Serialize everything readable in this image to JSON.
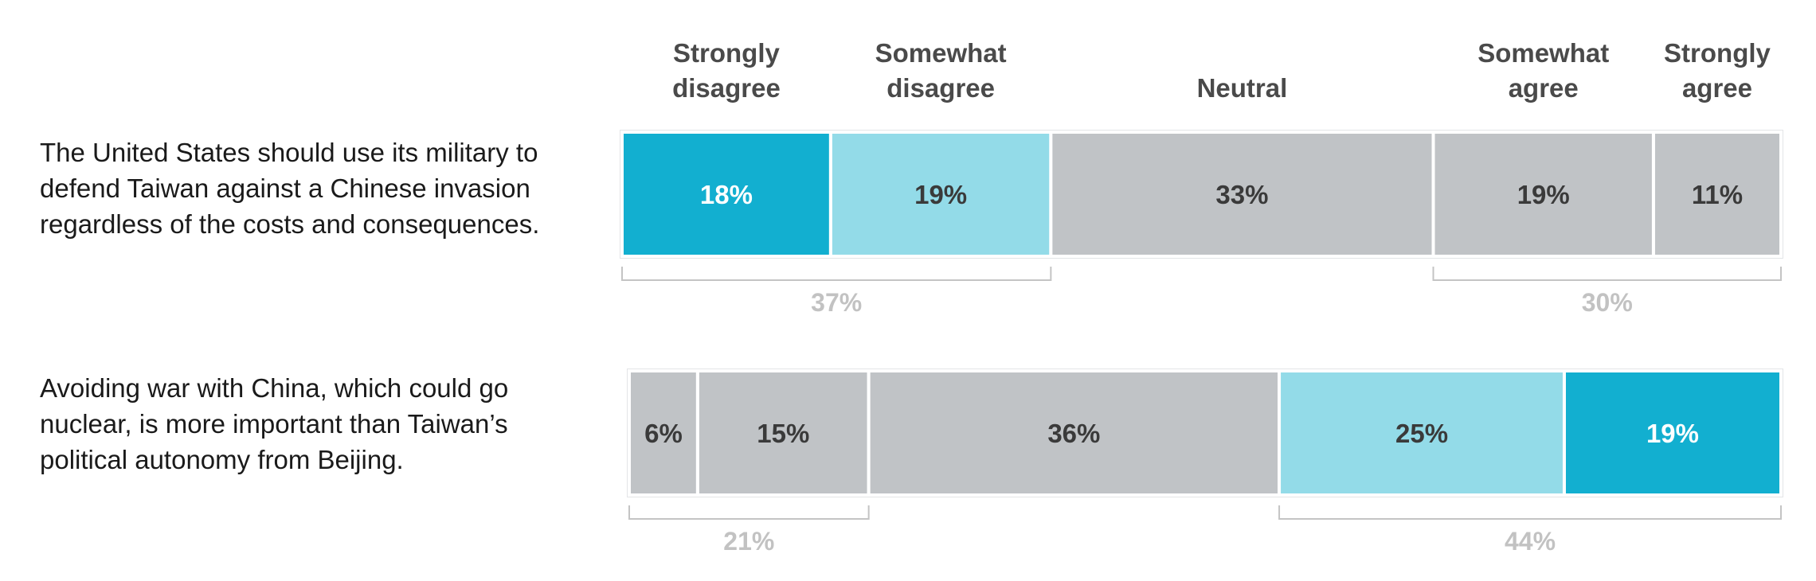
{
  "chart_data": {
    "type": "bar",
    "orientation": "horizontal-stacked",
    "columns": [
      {
        "line1": "Strongly",
        "line2": "disagree"
      },
      {
        "line1": "Somewhat",
        "line2": "disagree"
      },
      {
        "line1": "Neutral",
        "line2": ""
      },
      {
        "line1": "Somewhat",
        "line2": "agree"
      },
      {
        "line1": "Strongly",
        "line2": "agree"
      }
    ],
    "rows": [
      {
        "question": [
          "The United States should use its military to",
          "defend Taiwan against a Chinese invasion",
          "regardless of the costs and consequences."
        ],
        "segments": [
          {
            "value": 18,
            "label": "18%",
            "color": "#12afd0",
            "text_color": "#ffffff"
          },
          {
            "value": 19,
            "label": "19%",
            "color": "#93dbe8",
            "text_color": "#3a3a3a"
          },
          {
            "value": 33,
            "label": "33%",
            "color": "#c0c3c6",
            "text_color": "#3a3a3a"
          },
          {
            "value": 19,
            "label": "19%",
            "color": "#c0c3c6",
            "text_color": "#3a3a3a"
          },
          {
            "value": 11,
            "label": "11%",
            "color": "#c0c3c6",
            "text_color": "#3a3a3a"
          }
        ],
        "groups": [
          {
            "from": 0,
            "to": 1,
            "label": "37%"
          },
          {
            "from": 3,
            "to": 4,
            "label": "30%"
          }
        ]
      },
      {
        "question": [
          "Avoiding war with China, which could go",
          "nuclear, is more important than Taiwan’s",
          "political autonomy from Beijing."
        ],
        "segments": [
          {
            "value": 6,
            "label": "6%",
            "color": "#c0c3c6",
            "text_color": "#3a3a3a"
          },
          {
            "value": 15,
            "label": "15%",
            "color": "#c0c3c6",
            "text_color": "#3a3a3a"
          },
          {
            "value": 36,
            "label": "36%",
            "color": "#c0c3c6",
            "text_color": "#3a3a3a"
          },
          {
            "value": 25,
            "label": "25%",
            "color": "#93dbe8",
            "text_color": "#3a3a3a"
          },
          {
            "value": 19,
            "label": "19%",
            "color": "#12afd0",
            "text_color": "#ffffff"
          }
        ],
        "groups": [
          {
            "from": 0,
            "to": 1,
            "label": "21%"
          },
          {
            "from": 3,
            "to": 4,
            "label": "44%"
          }
        ]
      }
    ],
    "colors": {
      "strong": "#12afd0",
      "light": "#93dbe8",
      "neutral": "#c0c3c6",
      "bracket": "#c4c4c4",
      "bracket_label": "#c2c2c2"
    }
  }
}
